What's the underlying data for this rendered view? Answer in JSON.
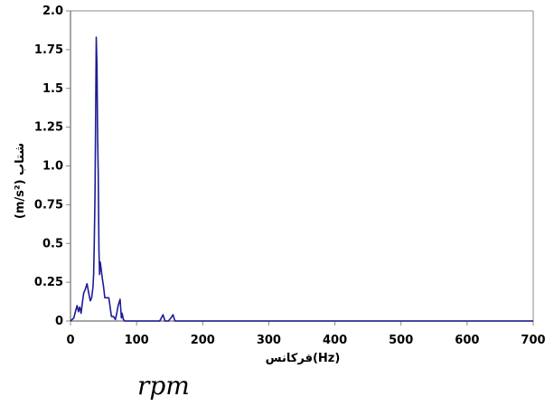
{
  "chart_data": {
    "type": "line",
    "title": "",
    "xlabel": "فركانس(Hz)",
    "ylabel": "(m/s²) شتاب",
    "xlim": [
      0,
      700
    ],
    "ylim": [
      0,
      2.0
    ],
    "xticks": [
      "0",
      "100",
      "200",
      "300",
      "400",
      "500",
      "600",
      "700"
    ],
    "yticks": [
      "0",
      "0.25",
      "0.5",
      "0.75",
      "1.0",
      "1.25",
      "1.5",
      "1.75",
      "2.0"
    ],
    "grid": false,
    "legend": "none",
    "series": [
      {
        "color": "#1c1c96",
        "x": [
          0,
          5,
          8,
          10,
          12,
          14,
          16,
          18,
          20,
          22,
          25,
          28,
          30,
          32,
          34,
          35,
          36,
          37,
          38,
          39,
          40,
          41,
          42,
          43,
          44,
          45,
          46,
          48,
          50,
          52,
          55,
          58,
          62,
          65,
          68,
          70,
          72,
          75,
          77,
          78,
          80,
          82,
          90,
          100,
          120,
          135,
          140,
          143,
          148,
          152,
          155,
          158,
          162,
          165,
          200,
          300,
          400,
          500,
          600,
          700
        ],
        "y": [
          0,
          0.02,
          0.07,
          0.1,
          0.06,
          0.09,
          0.05,
          0.12,
          0.18,
          0.2,
          0.24,
          0.17,
          0.13,
          0.15,
          0.22,
          0.3,
          0.5,
          0.8,
          1.3,
          1.83,
          1.65,
          1.2,
          0.95,
          0.45,
          0.3,
          0.38,
          0.35,
          0.28,
          0.22,
          0.15,
          0.15,
          0.15,
          0.03,
          0.03,
          0.01,
          0.05,
          0.1,
          0.14,
          0.02,
          0.05,
          0.01,
          0.0,
          0.0,
          0.0,
          0.0,
          0.0,
          0.04,
          0.0,
          0.0,
          0.02,
          0.04,
          0.0,
          0.0,
          0.0,
          0.0,
          0.0,
          0.0,
          0.0,
          0.0,
          0.0
        ]
      }
    ]
  },
  "caption": "rpm"
}
